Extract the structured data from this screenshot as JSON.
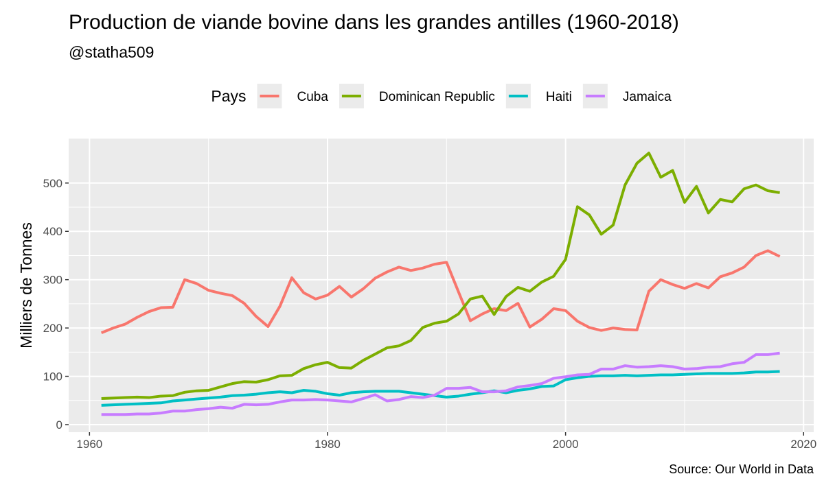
{
  "chart_data": {
    "type": "line",
    "title": "Production de viande bovine dans les grandes antilles (1960-2018)",
    "subtitle": "@statha509",
    "caption": "Source: Our World in Data",
    "y_label": "Milliers de Tonnes",
    "legend_title": "Pays",
    "legend": "top",
    "grid": true,
    "x": [
      1961,
      1962,
      1963,
      1964,
      1965,
      1966,
      1967,
      1968,
      1969,
      1970,
      1971,
      1972,
      1973,
      1974,
      1975,
      1976,
      1977,
      1978,
      1979,
      1980,
      1981,
      1982,
      1983,
      1984,
      1985,
      1986,
      1987,
      1988,
      1989,
      1990,
      1991,
      1992,
      1993,
      1994,
      1995,
      1996,
      1997,
      1998,
      1999,
      2000,
      2001,
      2002,
      2003,
      2004,
      2005,
      2006,
      2007,
      2008,
      2009,
      2010,
      2011,
      2012,
      2013,
      2014,
      2015,
      2016,
      2017,
      2018
    ],
    "xlim": [
      1958.25,
      2020.85
    ],
    "xticks": [
      1960,
      1980,
      2000,
      2020
    ],
    "ylim": [
      -15.6,
      592
    ],
    "yticks": [
      0,
      100,
      200,
      300,
      400,
      500
    ],
    "series": [
      {
        "name": "Cuba",
        "color": "#F8766D",
        "values": [
          190,
          200,
          208,
          222,
          234,
          242,
          243,
          300,
          292,
          278,
          272,
          267,
          251,
          224,
          203,
          245,
          304,
          273,
          260,
          268,
          286,
          264,
          281,
          303,
          316,
          326,
          319,
          324,
          332,
          336,
          275,
          215,
          229,
          240,
          236,
          251,
          202,
          218,
          240,
          236,
          214,
          201,
          195,
          200,
          197,
          196,
          276,
          300,
          290,
          282,
          292,
          283,
          306,
          314,
          326,
          350,
          360,
          348
        ]
      },
      {
        "name": "Dominican Republic",
        "color": "#7CAE00",
        "values": [
          54,
          55,
          56,
          57,
          56,
          59,
          60,
          67,
          70,
          71,
          78,
          85,
          89,
          88,
          93,
          101,
          102,
          116,
          124,
          129,
          118,
          117,
          133,
          146,
          159,
          163,
          174,
          201,
          210,
          214,
          229,
          260,
          266,
          228,
          265,
          284,
          276,
          295,
          307,
          342,
          451,
          434,
          394,
          413,
          496,
          541,
          562,
          512,
          526,
          460,
          493,
          438,
          466,
          461,
          488,
          496,
          484,
          480
        ]
      },
      {
        "name": "Haiti",
        "color": "#00BFC4",
        "values": [
          40,
          41,
          42,
          43,
          44,
          45,
          49,
          51,
          53,
          55,
          57,
          60,
          61,
          63,
          66,
          68,
          66,
          71,
          69,
          64,
          61,
          66,
          68,
          69,
          69,
          69,
          66,
          63,
          60,
          57,
          59,
          63,
          66,
          70,
          66,
          71,
          74,
          79,
          80,
          93,
          97,
          100,
          101,
          101,
          102,
          101,
          102,
          103,
          103,
          104,
          105,
          106,
          106,
          106,
          107,
          109,
          109,
          110
        ]
      },
      {
        "name": "Jamaica",
        "color": "#C77CFF",
        "values": [
          21,
          21,
          21,
          22,
          22,
          24,
          28,
          28,
          31,
          33,
          36,
          34,
          42,
          41,
          42,
          47,
          51,
          51,
          52,
          51,
          49,
          47,
          54,
          62,
          49,
          52,
          58,
          56,
          61,
          75,
          75,
          77,
          68,
          68,
          70,
          78,
          81,
          85,
          96,
          99,
          103,
          104,
          115,
          115,
          122,
          119,
          120,
          122,
          120,
          115,
          116,
          119,
          120,
          126,
          129,
          145,
          145,
          148
        ]
      }
    ]
  }
}
